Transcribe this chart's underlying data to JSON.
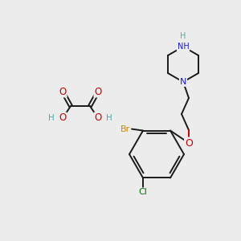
{
  "background_color": "#ececec",
  "bond_color": "#1a1a1a",
  "bond_width": 1.4,
  "atom_colors": {
    "H": "#4aacac",
    "N": "#1a1acc",
    "O": "#cc0000",
    "Br": "#cc8800",
    "Cl": "#007700"
  },
  "figsize": [
    3.0,
    3.0
  ],
  "dpi": 100
}
